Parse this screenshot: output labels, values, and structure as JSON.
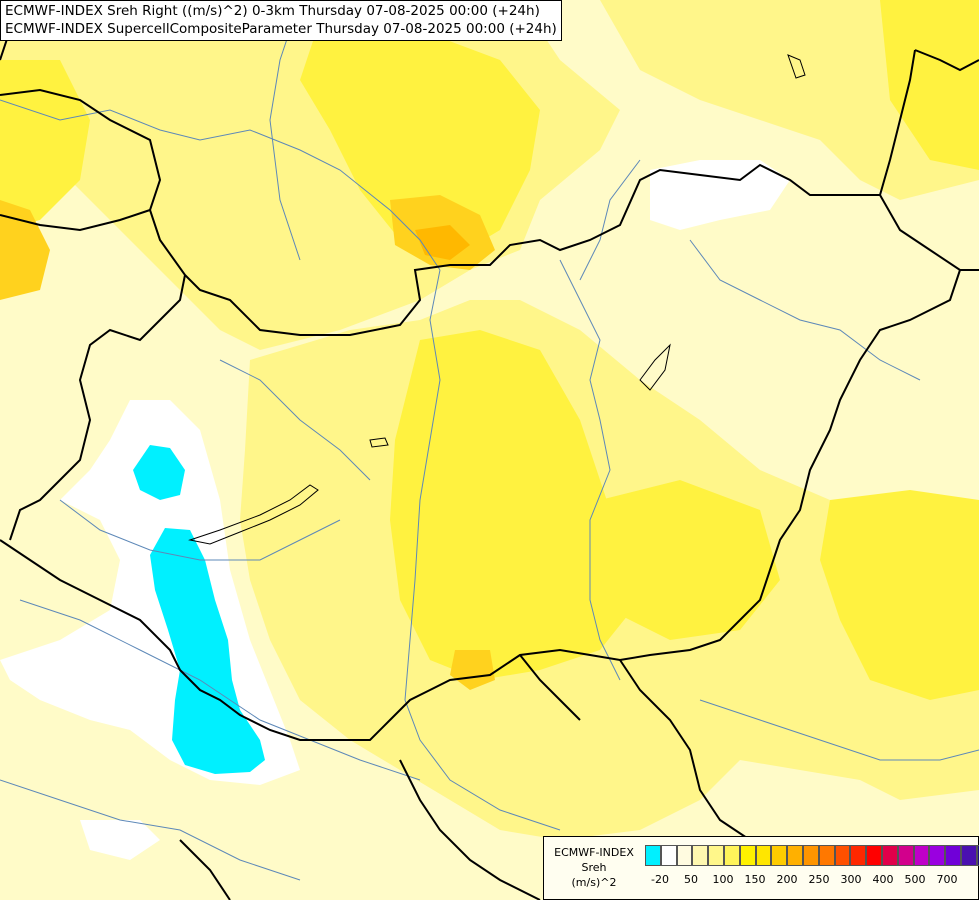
{
  "header": {
    "line1": "ECMWF-INDEX Sreh Right ((m/s)^2) 0-3km Thursday 07-08-2025 00:00 (+24h)",
    "line2": "ECMWF-INDEX SupercellCompositeParameter Thursday 07-08-2025 00:00 (+24h)"
  },
  "legend": {
    "title_line1": "ECMWF-INDEX",
    "title_line2": "Sreh",
    "title_line3": "(m/s)^2",
    "colors": [
      "#00f0ff",
      "#ffffff",
      "#fffbe0",
      "#fff8b0",
      "#fff78a",
      "#fff45a",
      "#fff200",
      "#ffe600",
      "#ffcc00",
      "#ffb000",
      "#ff9500",
      "#ff7800",
      "#ff5000",
      "#ff2800",
      "#ff0000",
      "#e0004a",
      "#d2008c",
      "#bf00c8",
      "#9a00e0",
      "#7000d8",
      "#4a10b0",
      "#1c0a80"
    ],
    "tick_labels": [
      "-20",
      "50",
      "100",
      "150",
      "200",
      "250",
      "300",
      "400",
      "500",
      "700"
    ]
  }
}
